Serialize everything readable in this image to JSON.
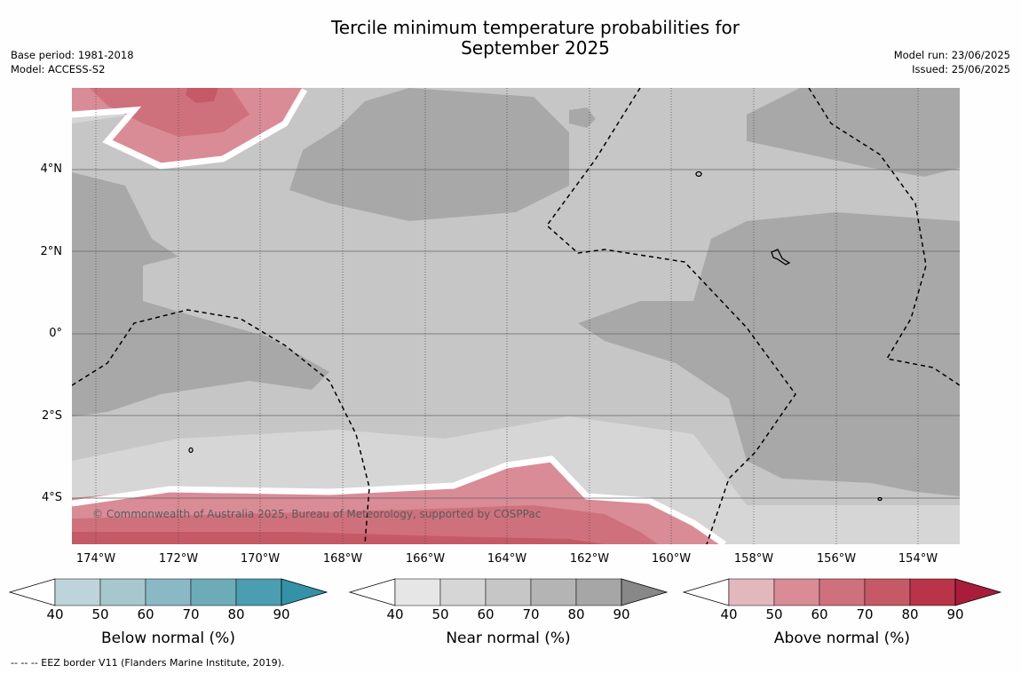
{
  "title_line1": "Tercile minimum temperature probabilities for",
  "title_line2": "September 2025",
  "base_period": "Base period: 1981-2018",
  "model": "Model: ACCESS-S2",
  "model_run": "Model run: 23/06/2025",
  "issued": "Issued: 25/06/2025",
  "credit": "© Commonwealth of Australia 2025, Bureau of Meteorology, supported by COSPPac",
  "footnote": "--  --  -- EEZ border V11 (Flanders Marine Institute, 2019).",
  "y_ticks": [
    "4°N",
    "2°N",
    "0°",
    "2°S",
    "4°S"
  ],
  "x_ticks": [
    "174°W",
    "172°W",
    "170°W",
    "168°W",
    "166°W",
    "164°W",
    "162°W",
    "160°W",
    "158°W",
    "156°W",
    "154°W"
  ],
  "colorbars": [
    {
      "title": "Below normal (%)",
      "ticks": [
        "40",
        "50",
        "60",
        "70",
        "80",
        "90"
      ],
      "colors": [
        "#bdd4da",
        "#a6c7cc",
        "#8ab8c4",
        "#6dabb9",
        "#4b9db0",
        "#3392a6"
      ]
    },
    {
      "title": "Near normal (%)",
      "ticks": [
        "40",
        "50",
        "60",
        "70",
        "80",
        "90"
      ],
      "colors": [
        "#e6e6e6",
        "#d6d6d6",
        "#c6c6c6",
        "#b4b4b4",
        "#a6a6a6",
        "#888888"
      ]
    },
    {
      "title": "Above normal (%)",
      "ticks": [
        "40",
        "50",
        "60",
        "70",
        "80",
        "90"
      ],
      "colors": [
        "#e3b8bd",
        "#d98c96",
        "#cf717c",
        "#c55a66",
        "#b93449",
        "#a81d3a"
      ]
    }
  ]
}
